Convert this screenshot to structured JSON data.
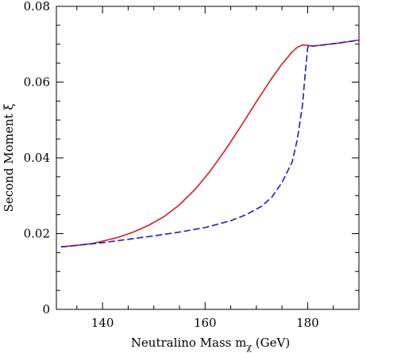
{
  "chart_data": {
    "type": "line",
    "title": "",
    "xlabel": "Neutralino Mass m",
    "xlabel_subscript": "χ",
    "xlabel_unit": " (GeV)",
    "ylabel": "Second Moment ξ",
    "xlim": [
      131,
      190
    ],
    "ylim": [
      0,
      0.08
    ],
    "xticks": [
      140,
      160,
      180
    ],
    "xtick_labels": [
      "140",
      "160",
      "180"
    ],
    "yticks": [
      0,
      0.02,
      0.04,
      0.06,
      0.08
    ],
    "ytick_labels": [
      "0",
      "0.02",
      "0.04",
      "0.06",
      "0.08"
    ],
    "grid": false,
    "legend": "none",
    "series": [
      {
        "color": "#e8141c",
        "style": "solid",
        "x": [
          132,
          135,
          138,
          140,
          143,
          146,
          149,
          152,
          155,
          158,
          161,
          164,
          167,
          170,
          173,
          175,
          177,
          178,
          179,
          180,
          181,
          183,
          186,
          190
        ],
        "y": [
          0.0165,
          0.0169,
          0.0174,
          0.018,
          0.019,
          0.0204,
          0.0222,
          0.0245,
          0.0276,
          0.0316,
          0.0365,
          0.0422,
          0.0484,
          0.0548,
          0.061,
          0.0648,
          0.068,
          0.0692,
          0.0698,
          0.0697,
          0.0695,
          0.0698,
          0.0703,
          0.0711
        ]
      },
      {
        "color": "#1a1ad6",
        "style": "dashed",
        "x": [
          132,
          135,
          138,
          140,
          145,
          150,
          155,
          160,
          165,
          168,
          171,
          173,
          175,
          177,
          178,
          179,
          179.5,
          180,
          180.3,
          181,
          183,
          186,
          190
        ],
        "y": [
          0.0165,
          0.0169,
          0.0173,
          0.0176,
          0.0185,
          0.0194,
          0.0204,
          0.0216,
          0.0234,
          0.025,
          0.0272,
          0.0296,
          0.0335,
          0.039,
          0.045,
          0.054,
          0.062,
          0.069,
          0.0698,
          0.0695,
          0.0698,
          0.0703,
          0.0711
        ]
      }
    ]
  }
}
